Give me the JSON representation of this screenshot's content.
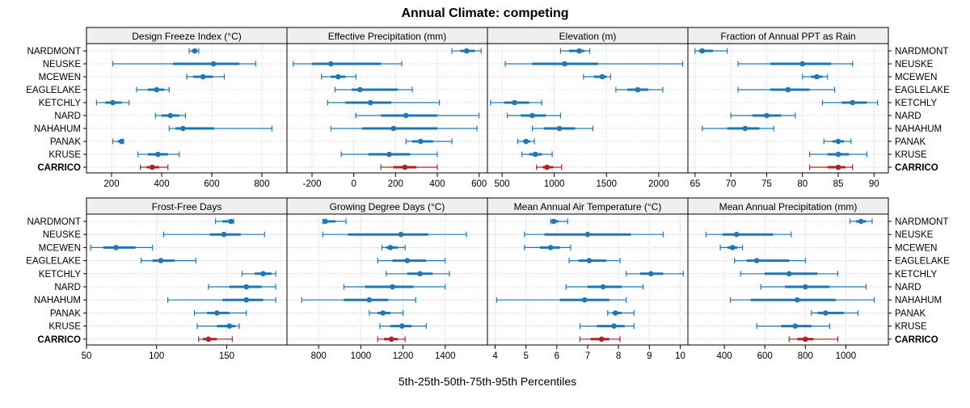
{
  "chart_data": {
    "type": "dot-interval",
    "title": "Annual Climate: competing",
    "xlabel": "5th-25th-50th-75th-95th Percentiles",
    "sites": [
      "NARDMONT",
      "NEUSKE",
      "MCEWEN",
      "EAGLELAKE",
      "KETCHLY",
      "NARD",
      "NAHAHUM",
      "PANAK",
      "KRUSE",
      "CARRICO"
    ],
    "highlight_site": "CARRICO",
    "colors": {
      "normal": "#1f77b4",
      "highlight": "#b22222",
      "strip": "#efefef",
      "grid": "#cccccc"
    },
    "panels": [
      {
        "title": "Design Freeze Index (°C)",
        "xlim": [
          100,
          900
        ],
        "ticks": [
          200,
          400,
          600,
          800
        ],
        "series": [
          {
            "site": "NARDMONT",
            "p5": 510,
            "p25": 520,
            "p50": 532,
            "p75": 542,
            "p95": 548
          },
          {
            "site": "NEUSKE",
            "p5": 205,
            "p25": 445,
            "p50": 607,
            "p75": 710,
            "p95": 775
          },
          {
            "site": "MCEWEN",
            "p5": 500,
            "p25": 525,
            "p50": 565,
            "p75": 605,
            "p95": 650
          },
          {
            "site": "EAGLELAKE",
            "p5": 300,
            "p25": 345,
            "p50": 380,
            "p75": 410,
            "p95": 430
          },
          {
            "site": "KETCHLY",
            "p5": 140,
            "p25": 175,
            "p50": 205,
            "p75": 240,
            "p95": 270
          },
          {
            "site": "NARD",
            "p5": 375,
            "p25": 400,
            "p50": 435,
            "p75": 470,
            "p95": 495
          },
          {
            "site": "NAHAHUM",
            "p5": 430,
            "p25": 455,
            "p50": 485,
            "p75": 610,
            "p95": 840
          },
          {
            "site": "PANAK",
            "p5": 205,
            "p25": 225,
            "p50": 240,
            "p75": 245,
            "p95": 248
          },
          {
            "site": "KRUSE",
            "p5": 305,
            "p25": 345,
            "p50": 385,
            "p75": 425,
            "p95": 470
          },
          {
            "site": "CARRICO",
            "p5": 315,
            "p25": 340,
            "p50": 362,
            "p75": 390,
            "p95": 425
          }
        ]
      },
      {
        "title": "Effective Precipitation (mm)",
        "xlim": [
          -320,
          640
        ],
        "ticks": [
          -200,
          0,
          200,
          400,
          600
        ],
        "series": [
          {
            "site": "NARDMONT",
            "p5": 470,
            "p25": 510,
            "p50": 540,
            "p75": 580,
            "p95": 610
          },
          {
            "site": "NEUSKE",
            "p5": -290,
            "p25": -200,
            "p50": -110,
            "p75": 130,
            "p95": 230
          },
          {
            "site": "MCEWEN",
            "p5": -155,
            "p25": -110,
            "p50": -75,
            "p75": -40,
            "p95": 10
          },
          {
            "site": "EAGLELAKE",
            "p5": -90,
            "p25": -10,
            "p50": 30,
            "p75": 210,
            "p95": 280
          },
          {
            "site": "KETCHLY",
            "p5": -125,
            "p25": -40,
            "p50": 80,
            "p75": 180,
            "p95": 410
          },
          {
            "site": "NARD",
            "p5": 10,
            "p25": 130,
            "p50": 250,
            "p75": 400,
            "p95": 600
          },
          {
            "site": "NAHAHUM",
            "p5": -110,
            "p25": 40,
            "p50": 190,
            "p75": 400,
            "p95": 590
          },
          {
            "site": "PANAK",
            "p5": 250,
            "p25": 280,
            "p50": 320,
            "p75": 380,
            "p95": 470
          },
          {
            "site": "KRUSE",
            "p5": -60,
            "p25": 70,
            "p50": 170,
            "p75": 270,
            "p95": 400
          },
          {
            "site": "CARRICO",
            "p5": 130,
            "p25": 190,
            "p50": 245,
            "p75": 300,
            "p95": 400
          }
        ]
      },
      {
        "title": "Elevation (m)",
        "xlim": [
          360,
          2280
        ],
        "ticks": [
          500,
          1000,
          1500,
          2000
        ],
        "series": [
          {
            "site": "NARDMONT",
            "p5": 1060,
            "p25": 1140,
            "p50": 1240,
            "p75": 1290,
            "p95": 1340
          },
          {
            "site": "NEUSKE",
            "p5": 530,
            "p25": 790,
            "p50": 1100,
            "p75": 1420,
            "p95": 2230
          },
          {
            "site": "MCEWEN",
            "p5": 1280,
            "p25": 1380,
            "p50": 1460,
            "p75": 1500,
            "p95": 1540
          },
          {
            "site": "EAGLELAKE",
            "p5": 1590,
            "p25": 1700,
            "p50": 1800,
            "p75": 1900,
            "p95": 2040
          },
          {
            "site": "KETCHLY",
            "p5": 390,
            "p25": 520,
            "p50": 620,
            "p75": 760,
            "p95": 880
          },
          {
            "site": "NARD",
            "p5": 550,
            "p25": 680,
            "p50": 790,
            "p75": 920,
            "p95": 1060
          },
          {
            "site": "NAHAHUM",
            "p5": 790,
            "p25": 900,
            "p50": 1050,
            "p75": 1200,
            "p95": 1370
          },
          {
            "site": "PANAK",
            "p5": 650,
            "p25": 700,
            "p50": 730,
            "p75": 770,
            "p95": 810
          },
          {
            "site": "KRUSE",
            "p5": 690,
            "p25": 760,
            "p50": 820,
            "p75": 880,
            "p95": 980
          },
          {
            "site": "CARRICO",
            "p5": 830,
            "p25": 890,
            "p50": 930,
            "p75": 990,
            "p95": 1070
          }
        ]
      },
      {
        "title": "Fraction of Annual PPT as Rain",
        "xlim": [
          64,
          92
        ],
        "ticks": [
          65,
          70,
          75,
          80,
          85,
          90
        ],
        "series": [
          {
            "site": "NARDMONT",
            "p5": 65,
            "p25": 65.5,
            "p50": 66,
            "p75": 67.5,
            "p95": 69.5
          },
          {
            "site": "NEUSKE",
            "p5": 71,
            "p25": 75.5,
            "p50": 80,
            "p75": 84,
            "p95": 87
          },
          {
            "site": "MCEWEN",
            "p5": 80,
            "p25": 81.2,
            "p50": 82,
            "p75": 82.8,
            "p95": 83.5
          },
          {
            "site": "EAGLELAKE",
            "p5": 71,
            "p25": 75.5,
            "p50": 78,
            "p75": 81,
            "p95": 84.5
          },
          {
            "site": "KETCHLY",
            "p5": 82.8,
            "p25": 85.5,
            "p50": 87,
            "p75": 89,
            "p95": 90.5
          },
          {
            "site": "NARD",
            "p5": 70,
            "p25": 73,
            "p50": 75,
            "p75": 77,
            "p95": 79
          },
          {
            "site": "NAHAHUM",
            "p5": 66,
            "p25": 69.5,
            "p50": 72,
            "p75": 74,
            "p95": 76
          },
          {
            "site": "PANAK",
            "p5": 83,
            "p25": 84.2,
            "p50": 85,
            "p75": 85.8,
            "p95": 86.8
          },
          {
            "site": "KRUSE",
            "p5": 81,
            "p25": 83.5,
            "p50": 85,
            "p75": 86.5,
            "p95": 89
          },
          {
            "site": "CARRICO",
            "p5": 81,
            "p25": 83.5,
            "p50": 85,
            "p75": 86,
            "p95": 87
          }
        ]
      },
      {
        "title": "Frost-Free Days",
        "xlim": [
          50,
          193
        ],
        "ticks": [
          50,
          100,
          150
        ],
        "series": [
          {
            "site": "NARDMONT",
            "p5": 142,
            "p25": 147,
            "p50": 153,
            "p75": 154,
            "p95": 155
          },
          {
            "site": "NEUSKE",
            "p5": 105,
            "p25": 138,
            "p50": 148,
            "p75": 160,
            "p95": 177
          },
          {
            "site": "MCEWEN",
            "p5": 53,
            "p25": 62,
            "p50": 71,
            "p75": 85,
            "p95": 97
          },
          {
            "site": "EAGLELAKE",
            "p5": 89,
            "p25": 97,
            "p50": 103,
            "p75": 113,
            "p95": 128
          },
          {
            "site": "KETCHLY",
            "p5": 161,
            "p25": 170,
            "p50": 176,
            "p75": 182,
            "p95": 185
          },
          {
            "site": "NARD",
            "p5": 137,
            "p25": 152,
            "p50": 164,
            "p75": 175,
            "p95": 185
          },
          {
            "site": "NAHAHUM",
            "p5": 108,
            "p25": 147,
            "p50": 164,
            "p75": 176,
            "p95": 185
          },
          {
            "site": "PANAK",
            "p5": 127,
            "p25": 136,
            "p50": 143,
            "p75": 152,
            "p95": 164
          },
          {
            "site": "KRUSE",
            "p5": 129,
            "p25": 143,
            "p50": 152,
            "p75": 156,
            "p95": 159
          },
          {
            "site": "CARRICO",
            "p5": 130,
            "p25": 133,
            "p50": 137,
            "p75": 143,
            "p95": 154
          }
        ]
      },
      {
        "title": "Growing Degree Days (°C)",
        "xlim": [
          650,
          1600
        ],
        "ticks": [
          800,
          1000,
          1200,
          1400
        ],
        "series": [
          {
            "site": "NARDMONT",
            "p5": 820,
            "p25": 825,
            "p50": 832,
            "p75": 880,
            "p95": 930
          },
          {
            "site": "NEUSKE",
            "p5": 820,
            "p25": 940,
            "p50": 1190,
            "p75": 1320,
            "p95": 1500
          },
          {
            "site": "MCEWEN",
            "p5": 1100,
            "p25": 1120,
            "p50": 1140,
            "p75": 1175,
            "p95": 1210
          },
          {
            "site": "EAGLELAKE",
            "p5": 1080,
            "p25": 1150,
            "p50": 1220,
            "p75": 1310,
            "p95": 1400
          },
          {
            "site": "KETCHLY",
            "p5": 1120,
            "p25": 1220,
            "p50": 1280,
            "p75": 1340,
            "p95": 1420
          },
          {
            "site": "NARD",
            "p5": 920,
            "p25": 1020,
            "p50": 1150,
            "p75": 1250,
            "p95": 1400
          },
          {
            "site": "NAHAHUM",
            "p5": 720,
            "p25": 920,
            "p50": 1040,
            "p75": 1130,
            "p95": 1260
          },
          {
            "site": "PANAK",
            "p5": 1040,
            "p25": 1080,
            "p50": 1105,
            "p75": 1140,
            "p95": 1200
          },
          {
            "site": "KRUSE",
            "p5": 1090,
            "p25": 1140,
            "p50": 1195,
            "p75": 1240,
            "p95": 1310
          },
          {
            "site": "CARRICO",
            "p5": 1080,
            "p25": 1110,
            "p50": 1145,
            "p75": 1175,
            "p95": 1210
          }
        ]
      },
      {
        "title": "Mean Annual Air Temperature (°C)",
        "xlim": [
          3.75,
          10.25
        ],
        "ticks": [
          4,
          5,
          6,
          7,
          8,
          9,
          10
        ],
        "series": [
          {
            "site": "NARDMONT",
            "p5": 5.8,
            "p25": 5.85,
            "p50": 5.9,
            "p75": 6.05,
            "p95": 6.35
          },
          {
            "site": "NEUSKE",
            "p5": 4.95,
            "p25": 5.6,
            "p50": 7.0,
            "p75": 8.4,
            "p95": 9.45
          },
          {
            "site": "MCEWEN",
            "p5": 4.95,
            "p25": 5.45,
            "p50": 5.8,
            "p75": 6.1,
            "p95": 6.45
          },
          {
            "site": "EAGLELAKE",
            "p5": 6.4,
            "p25": 6.7,
            "p50": 7.05,
            "p75": 7.6,
            "p95": 8.05
          },
          {
            "site": "KETCHLY",
            "p5": 8.25,
            "p25": 8.7,
            "p50": 9.05,
            "p75": 9.45,
            "p95": 10.1
          },
          {
            "site": "NARD",
            "p5": 6.3,
            "p25": 7.0,
            "p50": 7.5,
            "p75": 8.1,
            "p95": 8.8
          },
          {
            "site": "NAHAHUM",
            "p5": 4.05,
            "p25": 6.1,
            "p50": 6.9,
            "p75": 7.7,
            "p95": 8.25
          },
          {
            "site": "PANAK",
            "p5": 7.65,
            "p25": 7.8,
            "p50": 7.9,
            "p75": 8.1,
            "p95": 8.5
          },
          {
            "site": "KRUSE",
            "p5": 6.75,
            "p25": 7.3,
            "p50": 7.85,
            "p75": 8.2,
            "p95": 8.5
          },
          {
            "site": "CARRICO",
            "p5": 6.75,
            "p25": 7.1,
            "p50": 7.45,
            "p75": 7.7,
            "p95": 8.05
          }
        ]
      },
      {
        "title": "Mean Annual Precipitation (mm)",
        "xlim": [
          220,
          1210
        ],
        "ticks": [
          400,
          600,
          800,
          1000
        ],
        "series": [
          {
            "site": "NARDMONT",
            "p5": 1020,
            "p25": 1050,
            "p50": 1075,
            "p75": 1100,
            "p95": 1130
          },
          {
            "site": "NEUSKE",
            "p5": 310,
            "p25": 390,
            "p50": 460,
            "p75": 640,
            "p95": 730
          },
          {
            "site": "MCEWEN",
            "p5": 380,
            "p25": 415,
            "p50": 440,
            "p75": 465,
            "p95": 490
          },
          {
            "site": "EAGLELAKE",
            "p5": 450,
            "p25": 510,
            "p50": 560,
            "p75": 720,
            "p95": 800
          },
          {
            "site": "KETCHLY",
            "p5": 480,
            "p25": 600,
            "p50": 720,
            "p75": 860,
            "p95": 960
          },
          {
            "site": "NARD",
            "p5": 580,
            "p25": 700,
            "p50": 800,
            "p75": 920,
            "p95": 1100
          },
          {
            "site": "NAHAHUM",
            "p5": 430,
            "p25": 530,
            "p50": 760,
            "p75": 950,
            "p95": 1140
          },
          {
            "site": "PANAK",
            "p5": 830,
            "p25": 860,
            "p50": 900,
            "p75": 990,
            "p95": 1060
          },
          {
            "site": "KRUSE",
            "p5": 560,
            "p25": 680,
            "p50": 750,
            "p75": 830,
            "p95": 920
          },
          {
            "site": "CARRICO",
            "p5": 720,
            "p25": 760,
            "p50": 800,
            "p75": 840,
            "p95": 960
          }
        ]
      }
    ]
  }
}
